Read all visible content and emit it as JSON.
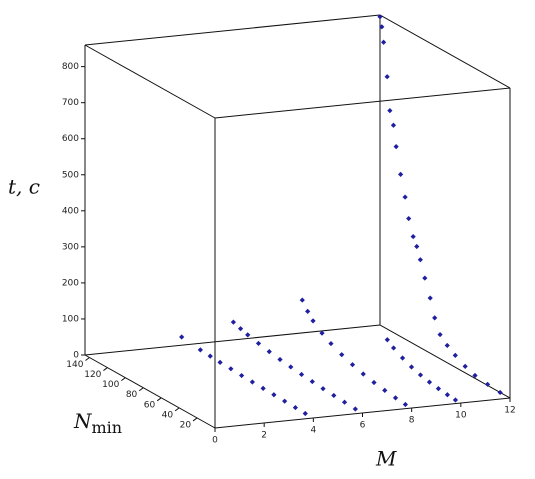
{
  "chart_data": {
    "type": "scatter3d",
    "xlabel": "M",
    "ylabel": "N",
    "ylabel_sub": "min",
    "zlabel": "t, c",
    "xlim": [
      0,
      12
    ],
    "ylim": [
      0,
      145
    ],
    "zlim": [
      0,
      860
    ],
    "xticks": [
      0,
      2,
      4,
      6,
      8,
      10,
      12
    ],
    "yticks": [
      20,
      40,
      60,
      80,
      100,
      120,
      140
    ],
    "zticks": [
      0,
      100,
      200,
      300,
      400,
      500,
      600,
      700,
      800
    ],
    "color": "#1f1fa0",
    "series": [
      {
        "x": [
          2,
          4,
          4,
          4,
          4,
          4,
          4,
          4,
          4,
          4,
          4,
          4,
          6,
          6,
          6,
          6,
          6,
          6,
          6,
          6,
          6,
          6,
          6,
          6,
          6,
          8,
          8,
          8,
          8,
          8,
          8,
          8,
          8,
          8,
          8,
          8,
          8,
          10,
          10,
          10,
          10,
          10,
          10,
          10,
          10,
          10,
          12,
          12,
          12,
          12,
          12,
          12,
          12,
          12,
          12,
          12,
          12,
          12,
          12,
          12,
          12,
          12,
          12,
          12,
          12,
          12,
          12,
          12,
          12
        ],
        "y": [
          92,
          9,
          20,
          32,
          44,
          56,
          68,
          80,
          92,
          104,
          115,
          126,
          8,
          20,
          32,
          44,
          56,
          68,
          80,
          92,
          104,
          116,
          128,
          136,
          144,
          7,
          18,
          30,
          42,
          54,
          66,
          78,
          90,
          100,
          110,
          116,
          122,
          6,
          15,
          25,
          35,
          45,
          55,
          65,
          75,
          82,
          11,
          25,
          39,
          50,
          61,
          70,
          78,
          84,
          89,
          95,
          100,
          104,
          108,
          113,
          117,
          122,
          127,
          130,
          134,
          137,
          141,
          143,
          145
        ],
        "z": [
          110,
          0,
          1,
          2,
          3,
          4,
          5,
          6,
          8,
          9,
          11,
          13,
          0,
          2,
          4,
          6,
          9,
          12,
          16,
          20,
          25,
          31,
          38,
          44,
          51,
          0,
          3,
          7,
          12,
          19,
          28,
          39,
          53,
          68,
          88,
          106,
          129,
          0,
          2,
          5,
          9,
          15,
          23,
          34,
          48,
          61,
          0,
          3,
          8,
          18,
          33,
          48,
          67,
          105,
          153,
          200,
          244,
          275,
          297,
          340,
          394,
          450,
          520,
          575,
          610,
          700,
          790,
          830,
          855
        ]
      }
    ]
  }
}
